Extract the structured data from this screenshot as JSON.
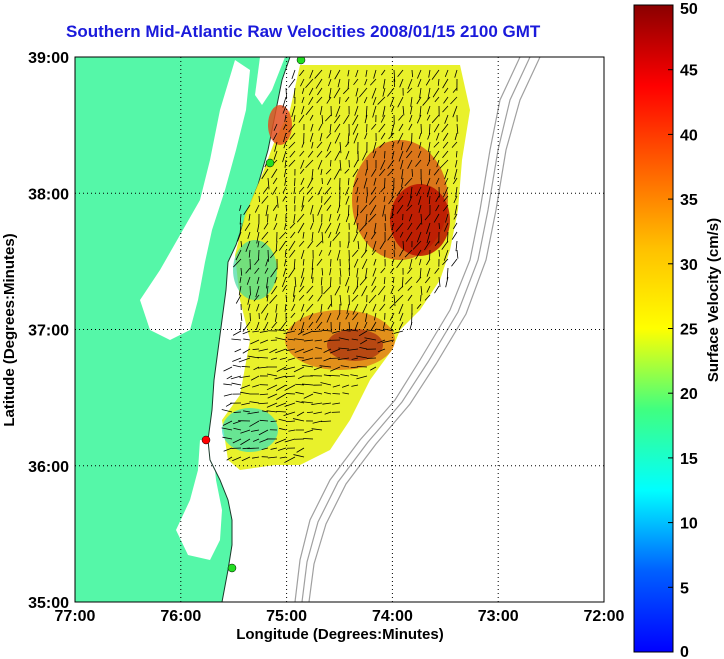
{
  "title": "Southern Mid-Atlantic Raw Velocities 2008/01/15 2100 GMT",
  "map": {
    "xlabel": "Longitude (Degrees:Minutes)",
    "ylabel": "Latitude (Degrees:Minutes)",
    "x_ticks": [
      "77:00",
      "76:00",
      "75:00",
      "74:00",
      "73:00",
      "72:00"
    ],
    "y_ticks": [
      "39:00",
      "38:00",
      "37:00",
      "36:00",
      "35:00"
    ],
    "lon_range": [
      -77,
      -72
    ],
    "lat_range": [
      35,
      39
    ],
    "grid": true,
    "colors": {
      "land": "#55f7a8",
      "water": "#ffffff",
      "bathymetry": "#a0a0a0",
      "station_green": "#22dd22",
      "station_red": "#ff0000"
    }
  },
  "colorbar": {
    "label": "Surface Velocity (cm/s)",
    "ticks": [
      "0",
      "5",
      "10",
      "15",
      "20",
      "25",
      "30",
      "35",
      "40",
      "45",
      "50"
    ],
    "range": [
      0,
      50
    ],
    "colormap": "jet"
  }
}
